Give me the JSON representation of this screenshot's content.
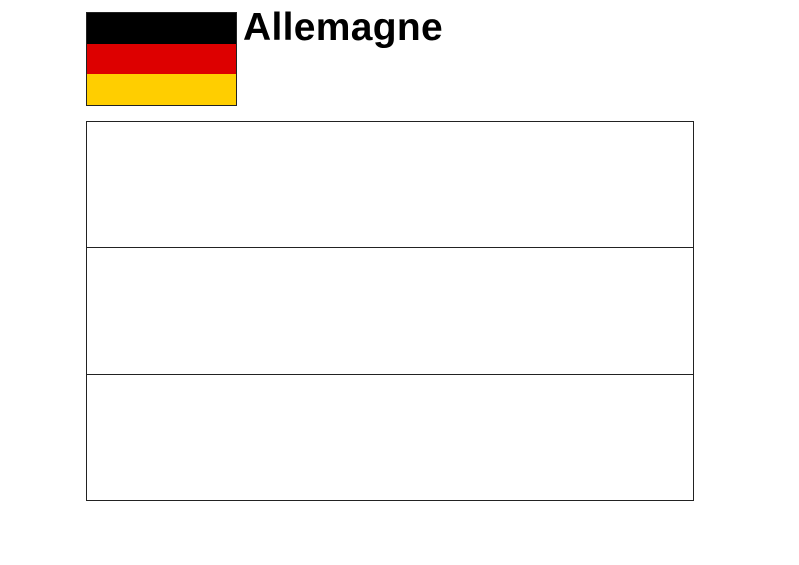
{
  "title": "Allemagne",
  "flag": {
    "colors": [
      "#000000",
      "#dd0000",
      "#ffce00"
    ]
  },
  "coloring_outline": {
    "stripes": 3,
    "fill": "#ffffff"
  }
}
